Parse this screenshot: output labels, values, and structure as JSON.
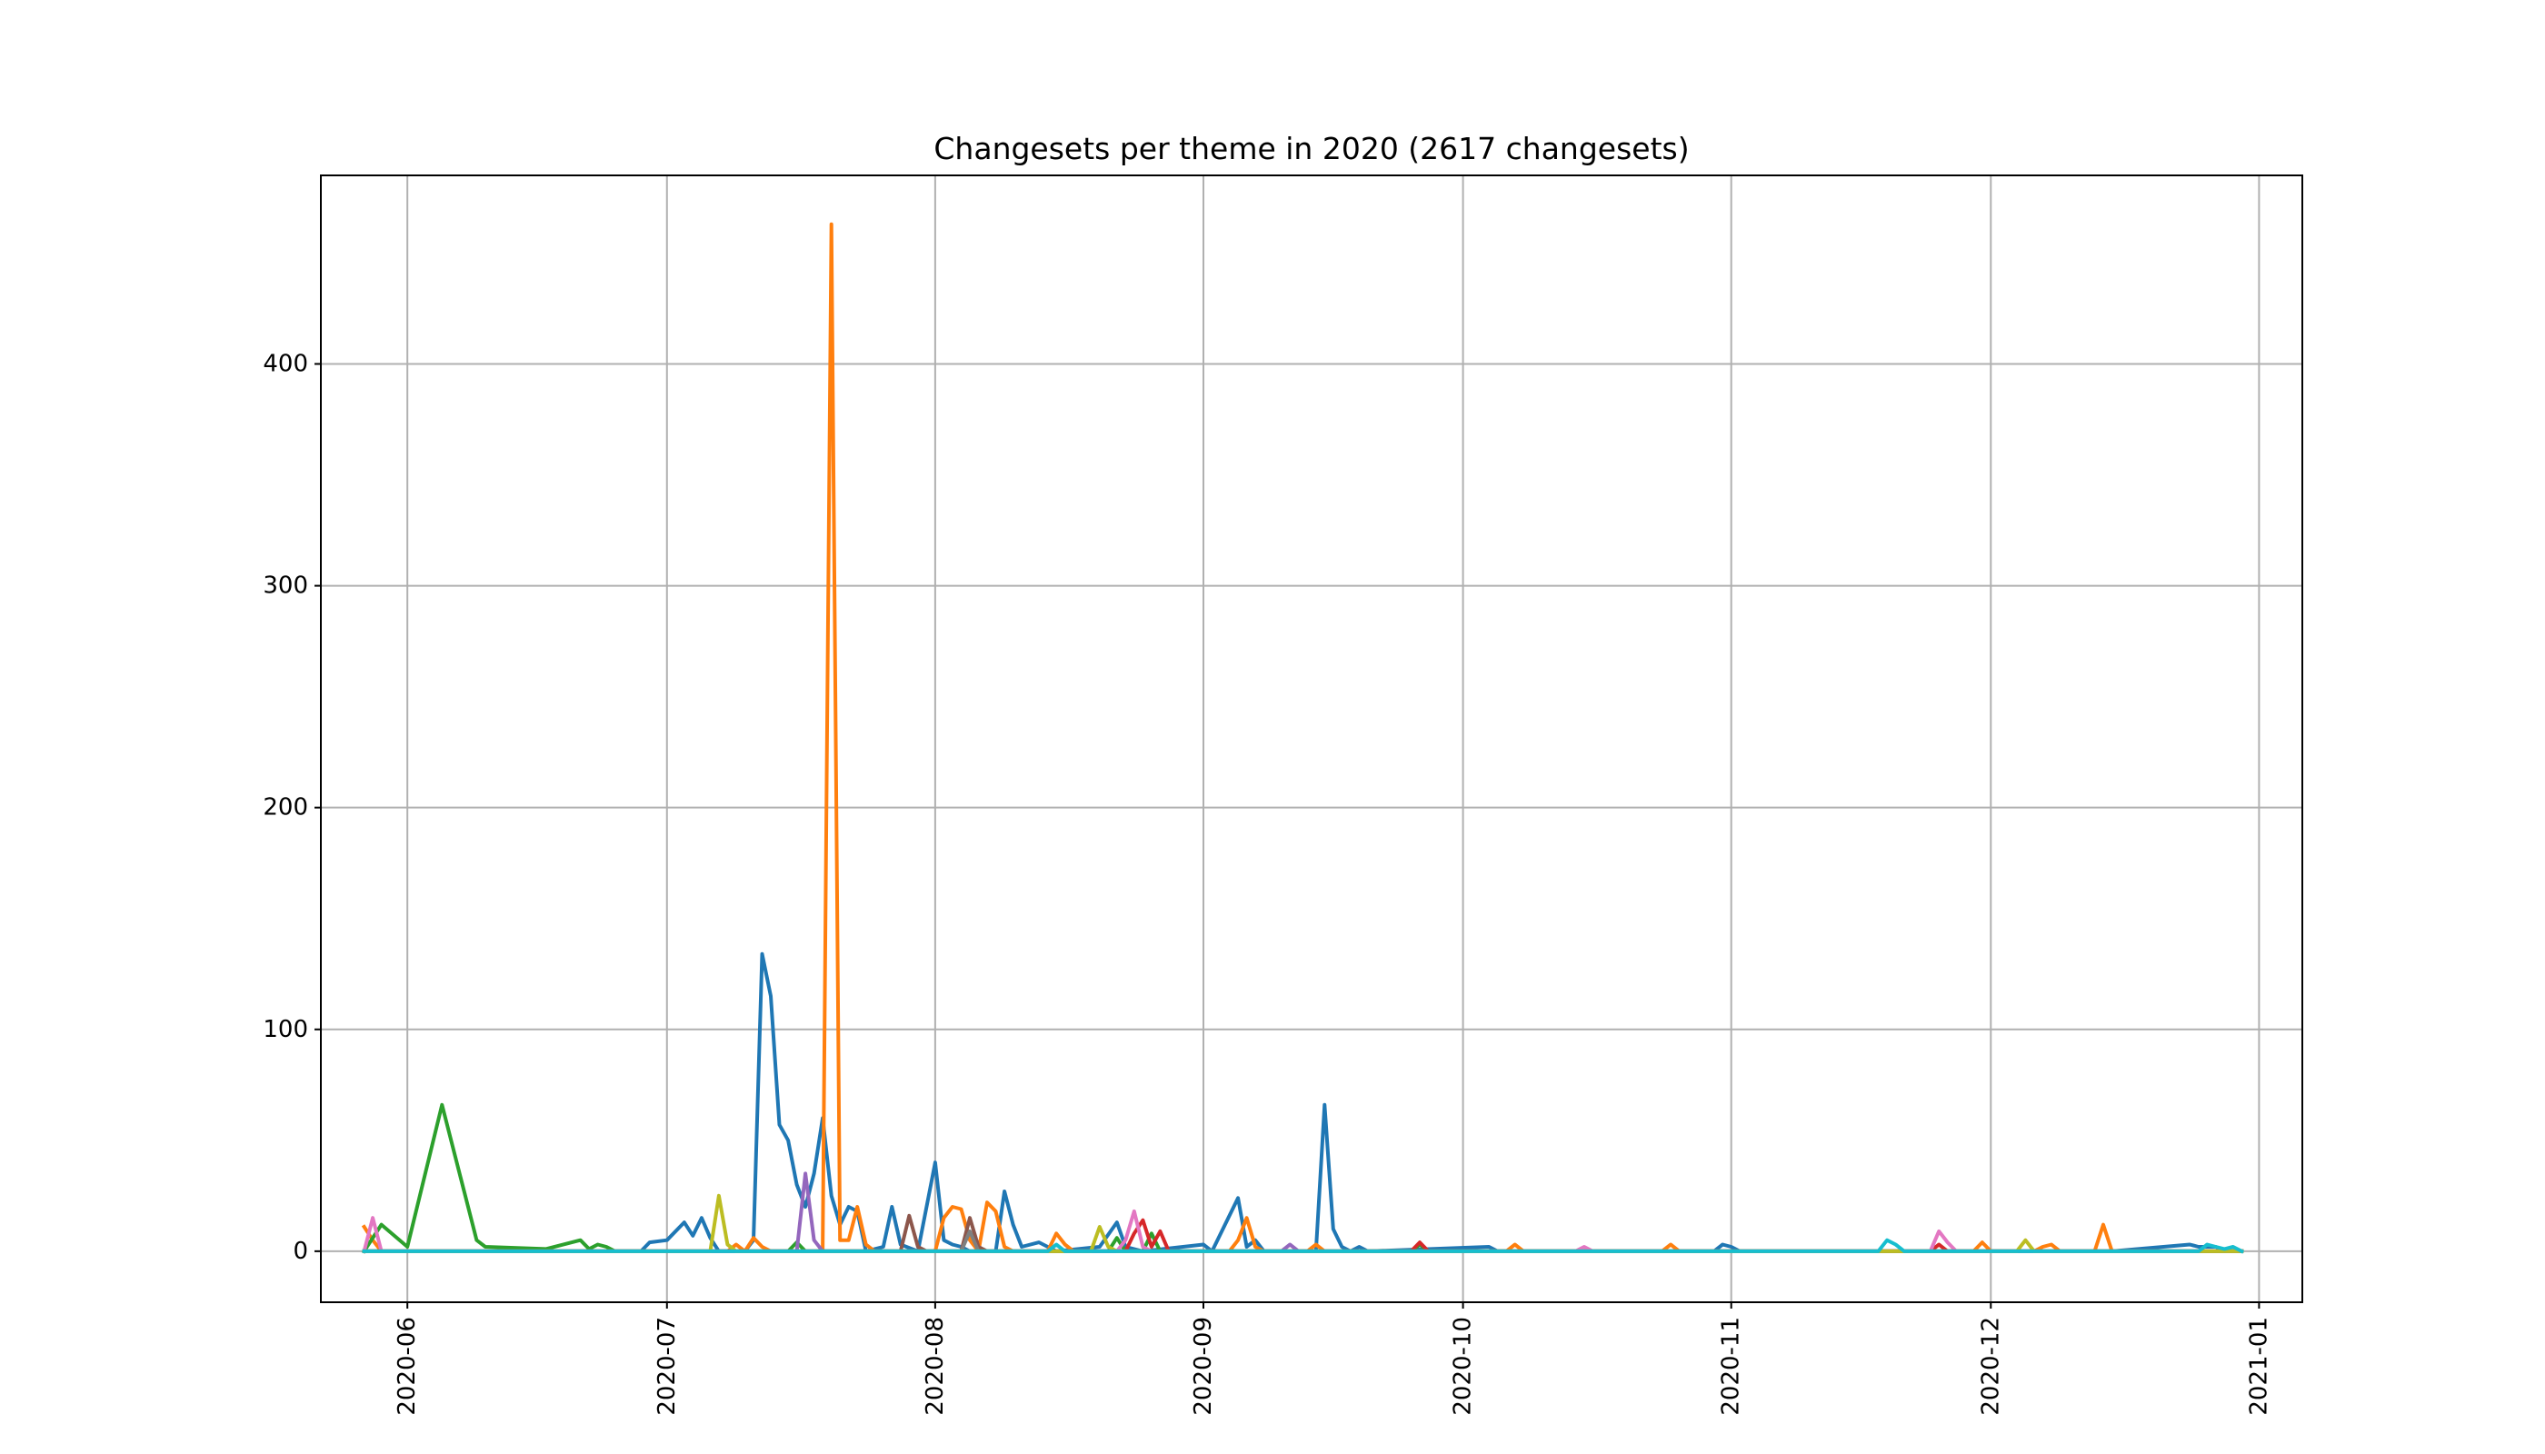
{
  "chart_data": {
    "type": "line",
    "title": "Changesets per theme in 2020 (2617 changesets)",
    "xlabel": "",
    "ylabel": "",
    "x_axis": "date",
    "xlim": [
      "2020-05-22",
      "2021-01-06"
    ],
    "ylim": [
      -23,
      485
    ],
    "x_ticks": [
      "2020-06",
      "2020-07",
      "2020-08",
      "2020-09",
      "2020-10",
      "2020-11",
      "2020-12",
      "2021-01"
    ],
    "y_ticks": [
      0,
      100,
      200,
      300,
      400
    ],
    "grid": true,
    "legend": "none",
    "series": [
      {
        "color": "#1f77b4",
        "points": [
          [
            "2020-05-27",
            0
          ],
          [
            "2020-06-28",
            0
          ],
          [
            "2020-06-29",
            4
          ],
          [
            "2020-07-01",
            5
          ],
          [
            "2020-07-03",
            13
          ],
          [
            "2020-07-04",
            7
          ],
          [
            "2020-07-05",
            15
          ],
          [
            "2020-07-06",
            6
          ],
          [
            "2020-07-07",
            0
          ],
          [
            "2020-07-10",
            0
          ],
          [
            "2020-07-11",
            5
          ],
          [
            "2020-07-12",
            134
          ],
          [
            "2020-07-13",
            115
          ],
          [
            "2020-07-14",
            57
          ],
          [
            "2020-07-15",
            50
          ],
          [
            "2020-07-16",
            30
          ],
          [
            "2020-07-17",
            20
          ],
          [
            "2020-07-18",
            35
          ],
          [
            "2020-07-19",
            60
          ],
          [
            "2020-07-20",
            25
          ],
          [
            "2020-07-21",
            12
          ],
          [
            "2020-07-22",
            20
          ],
          [
            "2020-07-23",
            18
          ],
          [
            "2020-07-24",
            0
          ],
          [
            "2020-07-26",
            2
          ],
          [
            "2020-07-27",
            20
          ],
          [
            "2020-07-28",
            3
          ],
          [
            "2020-07-30",
            0
          ],
          [
            "2020-08-01",
            40
          ],
          [
            "2020-08-02",
            5
          ],
          [
            "2020-08-03",
            3
          ],
          [
            "2020-08-04",
            2
          ],
          [
            "2020-08-05",
            0
          ],
          [
            "2020-08-08",
            0
          ],
          [
            "2020-08-09",
            27
          ],
          [
            "2020-08-10",
            12
          ],
          [
            "2020-08-11",
            2
          ],
          [
            "2020-08-13",
            4
          ],
          [
            "2020-08-15",
            0
          ],
          [
            "2020-08-20",
            2
          ],
          [
            "2020-08-22",
            13
          ],
          [
            "2020-08-23",
            2
          ],
          [
            "2020-08-25",
            0
          ],
          [
            "2020-09-01",
            3
          ],
          [
            "2020-09-02",
            0
          ],
          [
            "2020-09-05",
            24
          ],
          [
            "2020-09-06",
            2
          ],
          [
            "2020-09-07",
            5
          ],
          [
            "2020-09-08",
            0
          ],
          [
            "2020-09-14",
            0
          ],
          [
            "2020-09-15",
            66
          ],
          [
            "2020-09-16",
            10
          ],
          [
            "2020-09-17",
            2
          ],
          [
            "2020-09-18",
            0
          ],
          [
            "2020-09-19",
            2
          ],
          [
            "2020-09-20",
            0
          ],
          [
            "2020-10-04",
            2
          ],
          [
            "2020-10-05",
            0
          ],
          [
            "2020-10-30",
            0
          ],
          [
            "2020-10-31",
            3
          ],
          [
            "2020-11-01",
            2
          ],
          [
            "2020-11-02",
            0
          ],
          [
            "2020-11-28",
            0
          ],
          [
            "2020-12-15",
            0
          ],
          [
            "2020-12-24",
            3
          ],
          [
            "2020-12-25",
            2
          ],
          [
            "2020-12-27",
            2
          ],
          [
            "2020-12-28",
            0
          ],
          [
            "2020-12-30",
            0
          ]
        ]
      },
      {
        "color": "#ff7f0e",
        "points": [
          [
            "2020-05-27",
            11
          ],
          [
            "2020-05-28",
            5
          ],
          [
            "2020-05-29",
            0
          ],
          [
            "2020-07-08",
            0
          ],
          [
            "2020-07-09",
            3
          ],
          [
            "2020-07-10",
            0
          ],
          [
            "2020-07-11",
            6
          ],
          [
            "2020-07-12",
            2
          ],
          [
            "2020-07-13",
            0
          ],
          [
            "2020-07-19",
            0
          ],
          [
            "2020-07-20",
            463
          ],
          [
            "2020-07-21",
            5
          ],
          [
            "2020-07-22",
            5
          ],
          [
            "2020-07-23",
            20
          ],
          [
            "2020-07-24",
            3
          ],
          [
            "2020-07-25",
            0
          ],
          [
            "2020-08-01",
            0
          ],
          [
            "2020-08-02",
            15
          ],
          [
            "2020-08-03",
            20
          ],
          [
            "2020-08-04",
            19
          ],
          [
            "2020-08-05",
            5
          ],
          [
            "2020-08-06",
            0
          ],
          [
            "2020-08-07",
            22
          ],
          [
            "2020-08-08",
            18
          ],
          [
            "2020-08-09",
            2
          ],
          [
            "2020-08-10",
            0
          ],
          [
            "2020-08-14",
            0
          ],
          [
            "2020-08-15",
            8
          ],
          [
            "2020-08-16",
            3
          ],
          [
            "2020-08-17",
            0
          ],
          [
            "2020-09-04",
            0
          ],
          [
            "2020-09-05",
            5
          ],
          [
            "2020-09-06",
            15
          ],
          [
            "2020-09-07",
            2
          ],
          [
            "2020-09-08",
            0
          ],
          [
            "2020-09-13",
            0
          ],
          [
            "2020-09-14",
            3
          ],
          [
            "2020-09-15",
            0
          ],
          [
            "2020-10-06",
            0
          ],
          [
            "2020-10-07",
            3
          ],
          [
            "2020-10-08",
            0
          ],
          [
            "2020-10-24",
            0
          ],
          [
            "2020-10-25",
            3
          ],
          [
            "2020-10-26",
            0
          ],
          [
            "2020-11-29",
            0
          ],
          [
            "2020-11-30",
            4
          ],
          [
            "2020-12-01",
            0
          ],
          [
            "2020-12-06",
            0
          ],
          [
            "2020-12-07",
            2
          ],
          [
            "2020-12-08",
            3
          ],
          [
            "2020-12-09",
            0
          ],
          [
            "2020-12-13",
            0
          ],
          [
            "2020-12-14",
            12
          ],
          [
            "2020-12-15",
            0
          ],
          [
            "2020-12-30",
            0
          ]
        ]
      },
      {
        "color": "#2ca02c",
        "points": [
          [
            "2020-05-27",
            0
          ],
          [
            "2020-05-29",
            12
          ],
          [
            "2020-06-01",
            2
          ],
          [
            "2020-06-05",
            66
          ],
          [
            "2020-06-09",
            5
          ],
          [
            "2020-06-10",
            2
          ],
          [
            "2020-06-17",
            1
          ],
          [
            "2020-06-21",
            5
          ],
          [
            "2020-06-22",
            1
          ],
          [
            "2020-06-23",
            3
          ],
          [
            "2020-06-24",
            2
          ],
          [
            "2020-06-25",
            0
          ],
          [
            "2020-07-15",
            0
          ],
          [
            "2020-07-16",
            4
          ],
          [
            "2020-07-17",
            0
          ],
          [
            "2020-08-21",
            0
          ],
          [
            "2020-08-22",
            6
          ],
          [
            "2020-08-23",
            0
          ],
          [
            "2020-08-25",
            0
          ],
          [
            "2020-08-26",
            8
          ],
          [
            "2020-08-27",
            0
          ],
          [
            "2020-09-25",
            0
          ],
          [
            "2020-09-26",
            3
          ],
          [
            "2020-09-27",
            0
          ],
          [
            "2020-12-30",
            0
          ]
        ]
      },
      {
        "color": "#d62728",
        "points": [
          [
            "2020-05-27",
            0
          ],
          [
            "2020-08-23",
            0
          ],
          [
            "2020-08-24",
            8
          ],
          [
            "2020-08-25",
            14
          ],
          [
            "2020-08-26",
            2
          ],
          [
            "2020-08-27",
            9
          ],
          [
            "2020-08-28",
            0
          ],
          [
            "2020-09-25",
            0
          ],
          [
            "2020-09-26",
            4
          ],
          [
            "2020-09-27",
            0
          ],
          [
            "2020-11-24",
            0
          ],
          [
            "2020-11-25",
            3
          ],
          [
            "2020-11-26",
            0
          ],
          [
            "2020-12-30",
            0
          ]
        ]
      },
      {
        "color": "#9467bd",
        "points": [
          [
            "2020-05-27",
            0
          ],
          [
            "2020-07-16",
            0
          ],
          [
            "2020-07-17",
            35
          ],
          [
            "2020-07-18",
            5
          ],
          [
            "2020-07-19",
            0
          ],
          [
            "2020-09-10",
            0
          ],
          [
            "2020-09-11",
            3
          ],
          [
            "2020-09-12",
            0
          ],
          [
            "2020-12-30",
            0
          ]
        ]
      },
      {
        "color": "#8c564b",
        "points": [
          [
            "2020-05-27",
            0
          ],
          [
            "2020-07-28",
            0
          ],
          [
            "2020-07-29",
            16
          ],
          [
            "2020-07-30",
            2
          ],
          [
            "2020-07-31",
            0
          ],
          [
            "2020-08-04",
            0
          ],
          [
            "2020-08-05",
            15
          ],
          [
            "2020-08-06",
            2
          ],
          [
            "2020-08-07",
            0
          ],
          [
            "2020-12-30",
            0
          ]
        ]
      },
      {
        "color": "#e377c2",
        "points": [
          [
            "2020-05-27",
            0
          ],
          [
            "2020-05-28",
            15
          ],
          [
            "2020-05-29",
            0
          ],
          [
            "2020-08-22",
            0
          ],
          [
            "2020-08-23",
            5
          ],
          [
            "2020-08-24",
            18
          ],
          [
            "2020-08-25",
            2
          ],
          [
            "2020-08-26",
            0
          ],
          [
            "2020-10-14",
            0
          ],
          [
            "2020-10-15",
            2
          ],
          [
            "2020-10-16",
            0
          ],
          [
            "2020-11-24",
            0
          ],
          [
            "2020-11-25",
            9
          ],
          [
            "2020-11-26",
            4
          ],
          [
            "2020-11-27",
            0
          ],
          [
            "2020-12-30",
            0
          ]
        ]
      },
      {
        "color": "#7f7f7f",
        "points": [
          [
            "2020-05-27",
            0
          ],
          [
            "2020-08-04",
            0
          ],
          [
            "2020-08-05",
            9
          ],
          [
            "2020-08-06",
            0
          ],
          [
            "2020-12-30",
            0
          ]
        ]
      },
      {
        "color": "#bcbd22",
        "points": [
          [
            "2020-05-27",
            0
          ],
          [
            "2020-07-06",
            0
          ],
          [
            "2020-07-07",
            25
          ],
          [
            "2020-07-08",
            3
          ],
          [
            "2020-07-09",
            0
          ],
          [
            "2020-08-19",
            0
          ],
          [
            "2020-08-20",
            11
          ],
          [
            "2020-08-21",
            2
          ],
          [
            "2020-08-22",
            0
          ],
          [
            "2020-12-04",
            0
          ],
          [
            "2020-12-05",
            5
          ],
          [
            "2020-12-06",
            0
          ],
          [
            "2020-12-30",
            0
          ]
        ]
      },
      {
        "color": "#17becf",
        "points": [
          [
            "2020-05-27",
            0
          ],
          [
            "2020-08-14",
            0
          ],
          [
            "2020-08-15",
            3
          ],
          [
            "2020-08-16",
            0
          ],
          [
            "2020-11-18",
            0
          ],
          [
            "2020-11-19",
            5
          ],
          [
            "2020-11-20",
            3
          ],
          [
            "2020-11-21",
            0
          ],
          [
            "2020-12-25",
            0
          ],
          [
            "2020-12-26",
            3
          ],
          [
            "2020-12-27",
            2
          ],
          [
            "2020-12-28",
            1
          ],
          [
            "2020-12-29",
            2
          ],
          [
            "2020-12-30",
            0
          ]
        ]
      }
    ]
  }
}
